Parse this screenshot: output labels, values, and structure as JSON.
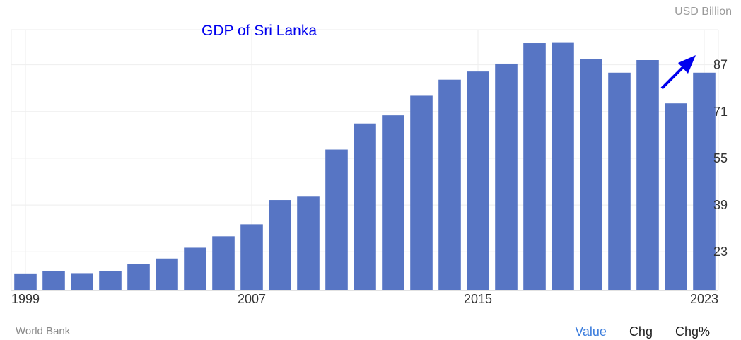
{
  "unit_label": "USD Billion",
  "source": "World Bank",
  "tabs": [
    {
      "label": "Value",
      "active": true
    },
    {
      "label": "Chg",
      "active": false
    },
    {
      "label": "Chg%",
      "active": false
    }
  ],
  "colors": {
    "bar": "#5775c4",
    "title": "#0000ee",
    "arrow": "#0000ee",
    "active_tab": "#3b7ddd"
  },
  "chart_data": {
    "type": "bar",
    "title": "GDP of Sri Lanka",
    "categories": [
      "1999",
      "2000",
      "2001",
      "2002",
      "2003",
      "2004",
      "2005",
      "2006",
      "2007",
      "2008",
      "2009",
      "2010",
      "2011",
      "2012",
      "2013",
      "2014",
      "2015",
      "2016",
      "2017",
      "2018",
      "2019",
      "2020",
      "2021",
      "2022",
      "2023"
    ],
    "values": [
      15.6,
      16.3,
      15.7,
      16.5,
      18.9,
      20.7,
      24.4,
      28.3,
      32.4,
      40.7,
      42.1,
      58.0,
      66.9,
      69.7,
      76.4,
      81.9,
      84.7,
      87.4,
      94.4,
      94.5,
      88.9,
      84.3,
      88.6,
      73.8,
      84.3
    ],
    "x_tick_labels": [
      "1999",
      "2007",
      "2015",
      "2023"
    ],
    "y_ticks": [
      23,
      39,
      55,
      71,
      87
    ],
    "ylim": [
      10,
      99
    ],
    "y_axis_position": "right",
    "grid": true,
    "trend_arrow": "up"
  }
}
